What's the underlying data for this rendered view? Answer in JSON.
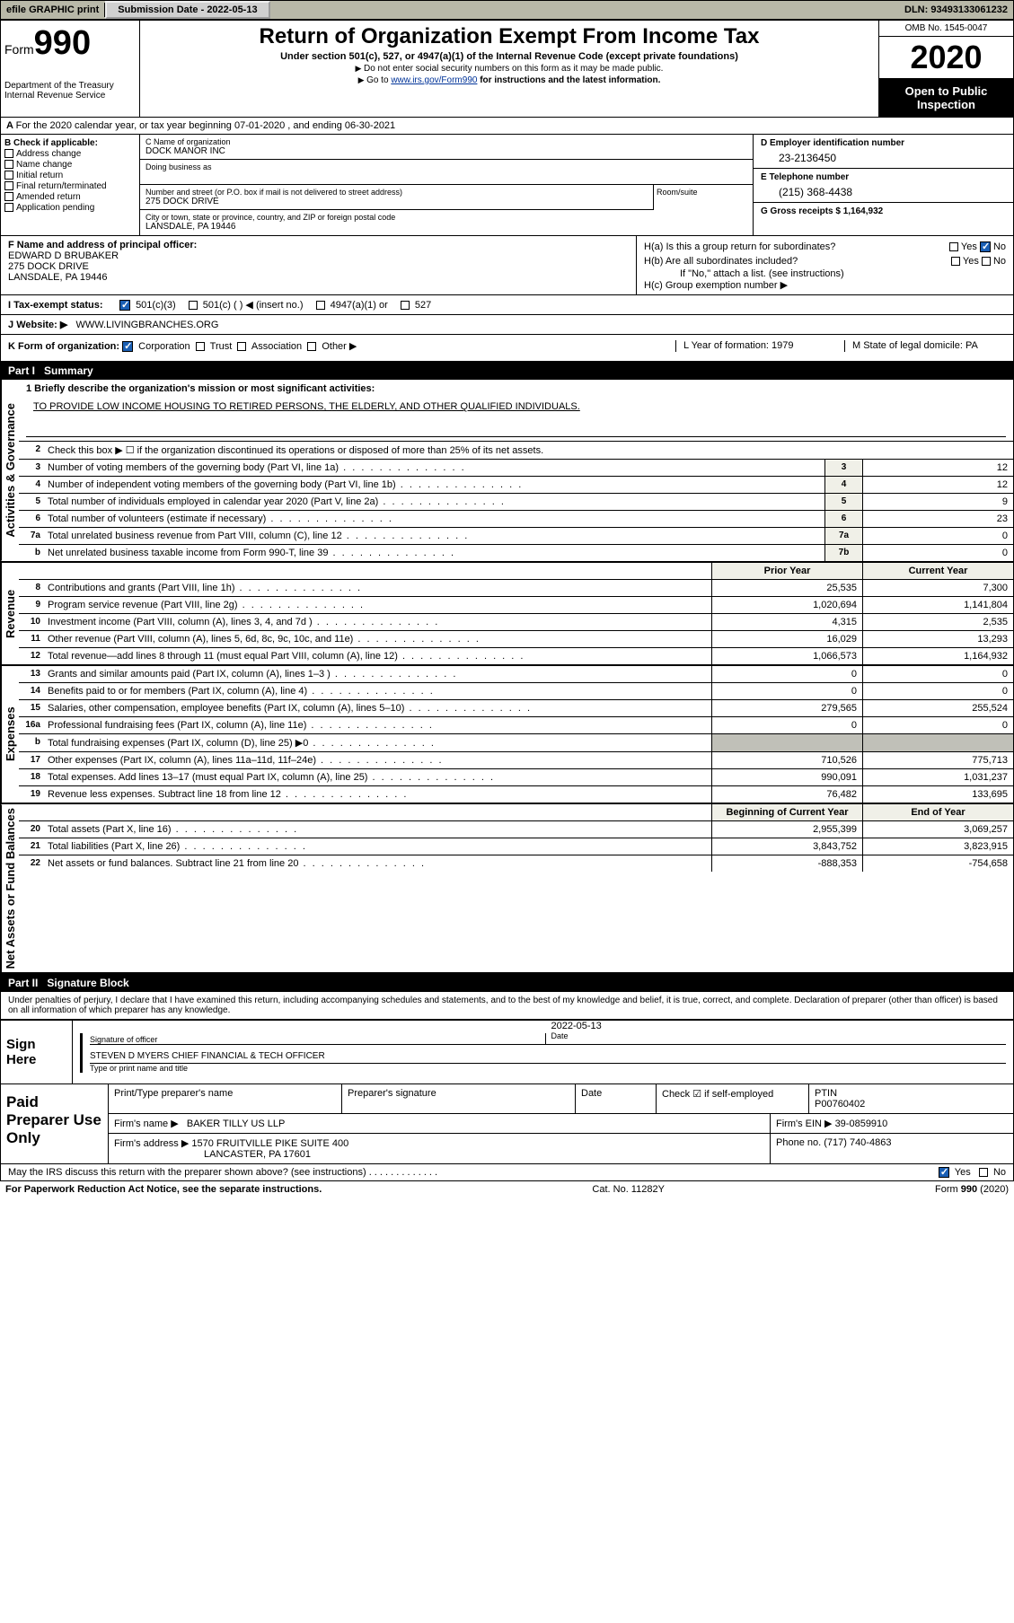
{
  "topbar": {
    "efile": "efile GRAPHIC print",
    "submission": "Submission Date - 2022-05-13",
    "dln": "DLN: 93493133061232"
  },
  "header": {
    "form_prefix": "Form",
    "form_no": "990",
    "dept": "Department of the Treasury",
    "irs": "Internal Revenue Service",
    "title": "Return of Organization Exempt From Income Tax",
    "subtitle": "Under section 501(c), 527, or 4947(a)(1) of the Internal Revenue Code (except private foundations)",
    "note1": "Do not enter social security numbers on this form as it may be made public.",
    "note2_pre": "Go to ",
    "note2_link": "www.irs.gov/Form990",
    "note2_post": " for instructions and the latest information.",
    "omb": "OMB No. 1545-0047",
    "year": "2020",
    "open": "Open to Public Inspection"
  },
  "row_a": "For the 2020 calendar year, or tax year beginning 07-01-2020    , and ending 06-30-2021",
  "box_b": {
    "title": "B Check if applicable:",
    "opts": [
      "Address change",
      "Name change",
      "Initial return",
      "Final return/terminated",
      "Amended return",
      "Application pending"
    ]
  },
  "box_c": {
    "name_lbl": "C Name of organization",
    "name": "DOCK MANOR INC",
    "dba_lbl": "Doing business as",
    "street_lbl": "Number and street (or P.O. box if mail is not delivered to street address)",
    "street": "275 DOCK DRIVE",
    "suite_lbl": "Room/suite",
    "city_lbl": "City or town, state or province, country, and ZIP or foreign postal code",
    "city": "LANSDALE, PA  19446"
  },
  "box_d": {
    "ein_lbl": "D Employer identification number",
    "ein": "23-2136450",
    "phone_lbl": "E Telephone number",
    "phone": "(215) 368-4438",
    "gross_lbl": "G Gross receipts $ 1,164,932"
  },
  "box_f": {
    "lbl": "F Name and address of principal officer:",
    "name": "EDWARD D BRUBAKER",
    "addr1": "275 DOCK DRIVE",
    "addr2": "LANSDALE, PA  19446"
  },
  "box_h": {
    "a_lbl": "H(a)  Is this a group return for subordinates?",
    "b_lbl": "H(b)  Are all subordinates included?",
    "b_note": "If \"No,\" attach a list. (see instructions)",
    "c_lbl": "H(c)  Group exemption number ▶",
    "yes": "Yes",
    "no": "No"
  },
  "tax_status": {
    "lbl": "Tax-exempt status:",
    "o1": "501(c)(3)",
    "o2": "501(c) (   ) ◀ (insert no.)",
    "o3": "4947(a)(1) or",
    "o4": "527"
  },
  "website": {
    "lbl": "Website: ▶",
    "val": "WWW.LIVINGBRANCHES.ORG"
  },
  "row_k": {
    "k": "K Form of organization:",
    "opts": [
      "Corporation",
      "Trust",
      "Association",
      "Other ▶"
    ],
    "l_lbl": "L Year of formation: 1979",
    "m_lbl": "M State of legal domicile: PA"
  },
  "part1": {
    "tag": "Part I",
    "title": "Summary"
  },
  "summary": {
    "mission_lbl": "1   Briefly describe the organization's mission or most significant activities:",
    "mission": "TO PROVIDE LOW INCOME HOUSING TO RETIRED PERSONS, THE ELDERLY, AND OTHER QUALIFIED INDIVIDUALS.",
    "line2": "Check this box ▶ ☐  if the organization discontinued its operations or disposed of more than 25% of its net assets."
  },
  "vlabels": {
    "gov": "Activities & Governance",
    "rev": "Revenue",
    "exp": "Expenses",
    "net": "Net Assets or Fund Balances"
  },
  "gov_lines": [
    {
      "n": "3",
      "d": "Number of voting members of the governing body (Part VI, line 1a)",
      "b": "3",
      "v": "12"
    },
    {
      "n": "4",
      "d": "Number of independent voting members of the governing body (Part VI, line 1b)",
      "b": "4",
      "v": "12"
    },
    {
      "n": "5",
      "d": "Total number of individuals employed in calendar year 2020 (Part V, line 2a)",
      "b": "5",
      "v": "9"
    },
    {
      "n": "6",
      "d": "Total number of volunteers (estimate if necessary)",
      "b": "6",
      "v": "23"
    },
    {
      "n": "7a",
      "d": "Total unrelated business revenue from Part VIII, column (C), line 12",
      "b": "7a",
      "v": "0"
    },
    {
      "n": "b",
      "d": "Net unrelated business taxable income from Form 990-T, line 39",
      "b": "7b",
      "v": "0"
    }
  ],
  "rev_head": {
    "py": "Prior Year",
    "cy": "Current Year"
  },
  "rev_lines": [
    {
      "n": "8",
      "d": "Contributions and grants (Part VIII, line 1h)",
      "py": "25,535",
      "cy": "7,300"
    },
    {
      "n": "9",
      "d": "Program service revenue (Part VIII, line 2g)",
      "py": "1,020,694",
      "cy": "1,141,804"
    },
    {
      "n": "10",
      "d": "Investment income (Part VIII, column (A), lines 3, 4, and 7d )",
      "py": "4,315",
      "cy": "2,535"
    },
    {
      "n": "11",
      "d": "Other revenue (Part VIII, column (A), lines 5, 6d, 8c, 9c, 10c, and 11e)",
      "py": "16,029",
      "cy": "13,293"
    },
    {
      "n": "12",
      "d": "Total revenue—add lines 8 through 11 (must equal Part VIII, column (A), line 12)",
      "py": "1,066,573",
      "cy": "1,164,932"
    }
  ],
  "exp_lines": [
    {
      "n": "13",
      "d": "Grants and similar amounts paid (Part IX, column (A), lines 1–3 )",
      "py": "0",
      "cy": "0"
    },
    {
      "n": "14",
      "d": "Benefits paid to or for members (Part IX, column (A), line 4)",
      "py": "0",
      "cy": "0"
    },
    {
      "n": "15",
      "d": "Salaries, other compensation, employee benefits (Part IX, column (A), lines 5–10)",
      "py": "279,565",
      "cy": "255,524"
    },
    {
      "n": "16a",
      "d": "Professional fundraising fees (Part IX, column (A), line 11e)",
      "py": "0",
      "cy": "0"
    },
    {
      "n": "b",
      "d": "Total fundraising expenses (Part IX, column (D), line 25) ▶0",
      "py": "",
      "cy": "",
      "grey": true
    },
    {
      "n": "17",
      "d": "Other expenses (Part IX, column (A), lines 11a–11d, 11f–24e)",
      "py": "710,526",
      "cy": "775,713"
    },
    {
      "n": "18",
      "d": "Total expenses. Add lines 13–17 (must equal Part IX, column (A), line 25)",
      "py": "990,091",
      "cy": "1,031,237"
    },
    {
      "n": "19",
      "d": "Revenue less expenses. Subtract line 18 from line 12",
      "py": "76,482",
      "cy": "133,695"
    }
  ],
  "net_head": {
    "py": "Beginning of Current Year",
    "cy": "End of Year"
  },
  "net_lines": [
    {
      "n": "20",
      "d": "Total assets (Part X, line 16)",
      "py": "2,955,399",
      "cy": "3,069,257"
    },
    {
      "n": "21",
      "d": "Total liabilities (Part X, line 26)",
      "py": "3,843,752",
      "cy": "3,823,915"
    },
    {
      "n": "22",
      "d": "Net assets or fund balances. Subtract line 21 from line 20",
      "py": "-888,353",
      "cy": "-754,658"
    }
  ],
  "part2": {
    "tag": "Part II",
    "title": "Signature Block"
  },
  "decl": "Under penalties of perjury, I declare that I have examined this return, including accompanying schedules and statements, and to the best of my knowledge and belief, it is true, correct, and complete. Declaration of preparer (other than officer) is based on all information of which preparer has any knowledge.",
  "sign": {
    "here": "Sign Here",
    "sig_lbl": "Signature of officer",
    "date_lbl": "Date",
    "date": "2022-05-13",
    "name": "STEVEN D MYERS  CHIEF FINANCIAL & TECH OFFICER",
    "name_lbl": "Type or print name and title"
  },
  "paid": {
    "title": "Paid Preparer Use Only",
    "h1": "Print/Type preparer's name",
    "h2": "Preparer's signature",
    "h3": "Date",
    "h4": "Check ☑ if self-employed",
    "h5_lbl": "PTIN",
    "h5": "P00760402",
    "firm_lbl": "Firm's name   ▶",
    "firm": "BAKER TILLY US LLP",
    "ein_lbl": "Firm's EIN ▶",
    "ein": "39-0859910",
    "addr_lbl": "Firm's address ▶",
    "addr1": "1570 FRUITVILLE PIKE SUITE 400",
    "addr2": "LANCASTER, PA  17601",
    "phone_lbl": "Phone no. (717) 740-4863"
  },
  "irs_q": "May the IRS discuss this return with the preparer shown above? (see instructions)",
  "footer": {
    "l": "For Paperwork Reduction Act Notice, see the separate instructions.",
    "c": "Cat. No. 11282Y",
    "r": "Form 990 (2020)"
  }
}
